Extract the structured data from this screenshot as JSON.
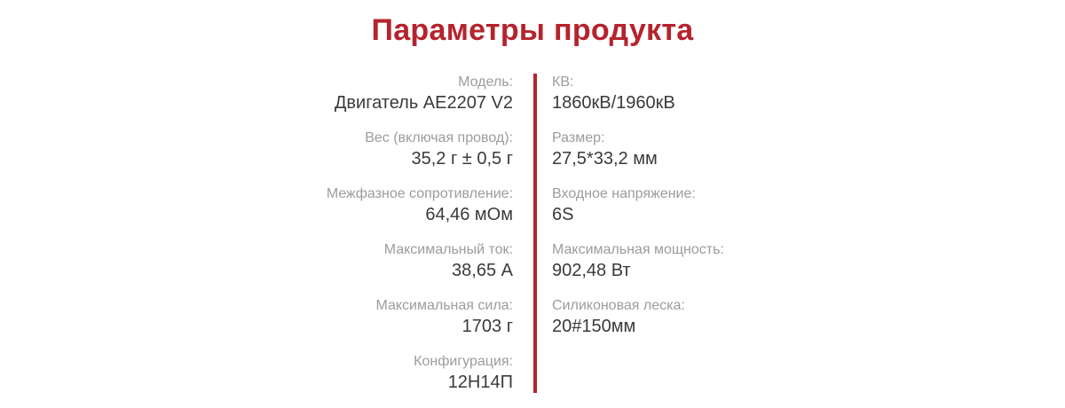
{
  "page_title": "Параметры продукта",
  "colors": {
    "accent": "#b5232d",
    "label_text": "#9c9c9c",
    "value_text": "#3a3a3a"
  },
  "left_column": {
    "rows": [
      {
        "label": "Модель:",
        "value": "Двигатель AE2207 V2"
      },
      {
        "label": "Вес (включая провод):",
        "value": "35,2 г ± 0,5 г"
      },
      {
        "label": "Межфазное сопротивление:",
        "value": "64,46 мОм"
      },
      {
        "label": "Максимальный ток:",
        "value": "38,65 А"
      },
      {
        "label": "Максимальная сила:",
        "value": "1703 г"
      },
      {
        "label": "Конфигурация:",
        "value": "12Н14П"
      }
    ]
  },
  "right_column": {
    "rows": [
      {
        "label": "КВ:",
        "value": "1860кВ/1960кВ"
      },
      {
        "label": "Размер:",
        "value": "27,5*33,2 мм"
      },
      {
        "label": "Входное напряжение:",
        "value": "6S"
      },
      {
        "label": "Максимальная мощность:",
        "value": "902,48 Вт"
      },
      {
        "label": "Силиконовая леска:",
        "value": "20#150мм"
      }
    ]
  }
}
